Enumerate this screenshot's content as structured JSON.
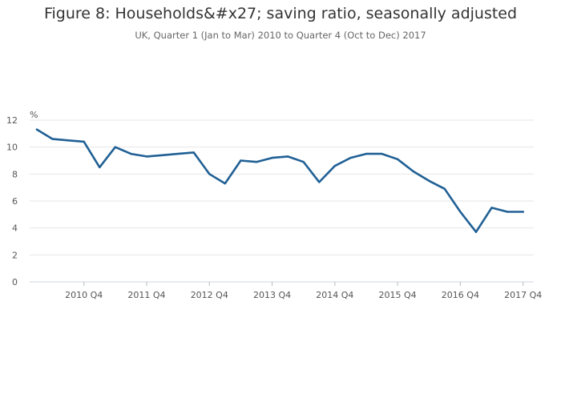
{
  "chart_data": {
    "type": "line",
    "title": "Figure 8: Households&#x27; saving ratio, seasonally adjusted",
    "subtitle": "UK, Quarter 1 (Jan to Mar) 2010 to Quarter 4 (Oct to Dec) 2017",
    "ylabel": "%",
    "ylim": [
      0,
      12
    ],
    "yticks": [
      0,
      2,
      4,
      6,
      8,
      10,
      12
    ],
    "xtick_labels": [
      "2010 Q4",
      "2011 Q4",
      "2012 Q4",
      "2013 Q4",
      "2014 Q4",
      "2015 Q4",
      "2016 Q4",
      "2017 Q4"
    ],
    "grid": true,
    "line_color": "#206095",
    "series": [
      {
        "x": [
          "2010 Q1",
          "2010 Q2",
          "2010 Q3",
          "2010 Q4",
          "2011 Q1",
          "2011 Q2",
          "2011 Q3",
          "2011 Q4",
          "2012 Q1",
          "2012 Q2",
          "2012 Q3",
          "2012 Q4",
          "2013 Q1",
          "2013 Q2",
          "2013 Q3",
          "2013 Q4",
          "2014 Q1",
          "2014 Q2",
          "2014 Q3",
          "2014 Q4",
          "2015 Q1",
          "2015 Q2",
          "2015 Q3",
          "2015 Q4",
          "2016 Q1",
          "2016 Q2",
          "2016 Q3",
          "2016 Q4",
          "2017 Q1",
          "2017 Q2",
          "2017 Q3",
          "2017 Q4"
        ],
        "values": [
          11.3,
          10.6,
          10.5,
          10.4,
          8.5,
          10.0,
          9.5,
          9.3,
          9.4,
          9.5,
          9.6,
          8.0,
          7.3,
          9.0,
          8.9,
          9.2,
          9.3,
          8.9,
          7.4,
          8.6,
          9.2,
          9.5,
          9.5,
          9.1,
          8.2,
          7.5,
          6.9,
          5.2,
          3.7,
          5.5,
          5.2,
          5.2
        ]
      }
    ]
  }
}
